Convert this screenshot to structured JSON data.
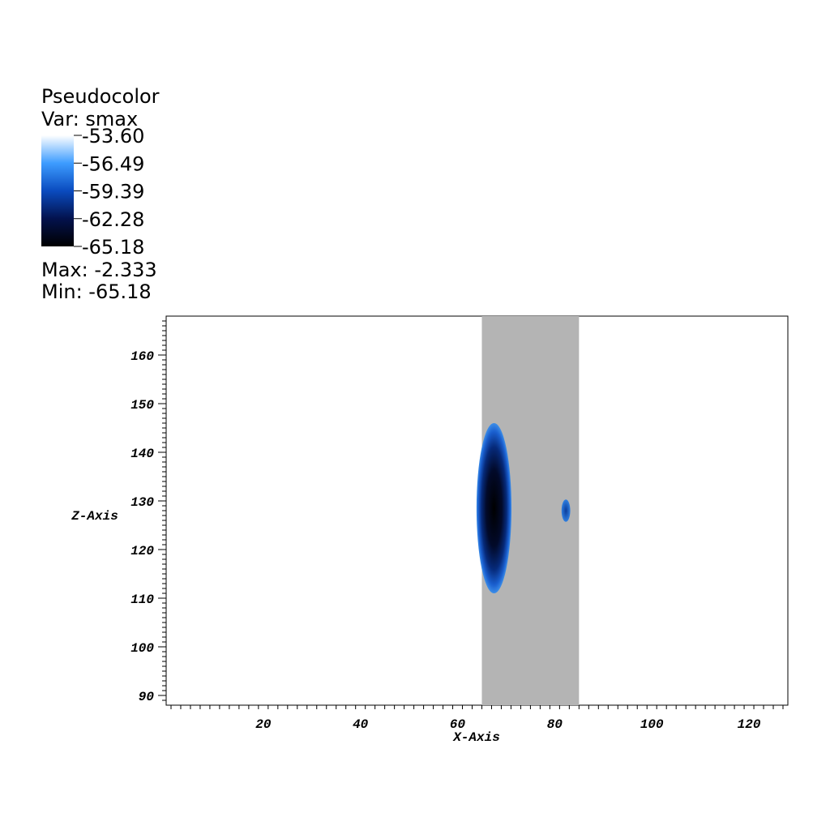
{
  "legend": {
    "plot_type": "Pseudocolor",
    "var_line": "Var: smax",
    "max_line": "Max: -2.333",
    "min_line": "Min: -65.18",
    "colorbar_labels": [
      "-53.60",
      "-56.49",
      "-59.39",
      "-62.28",
      "-65.18"
    ],
    "colorbar_colors": [
      "#ffffff",
      "#3d9cff",
      "#0a4bbf",
      "#03124d",
      "#000000"
    ]
  },
  "chart_data": {
    "type": "heatmap",
    "title": "",
    "xlabel": "X-Axis",
    "ylabel": "Z-Axis",
    "xlim": [
      0,
      128
    ],
    "ylim": [
      88,
      168
    ],
    "x_ticks": [
      20,
      40,
      60,
      80,
      100,
      120
    ],
    "y_ticks": [
      90,
      100,
      110,
      120,
      130,
      140,
      150,
      160
    ],
    "variable": "smax",
    "range": {
      "min": -65.18,
      "max": -2.333
    },
    "colorbar_range": [
      -65.18,
      -53.6
    ],
    "background_band": {
      "x": [
        65,
        85
      ],
      "color": "#b4b4b4"
    },
    "features": [
      {
        "name": "main-blob",
        "center": [
          67.5,
          128.5
        ],
        "half_width_x": 3.6,
        "half_height_z": 17.5,
        "value_min": -65.18
      },
      {
        "name": "small-blob",
        "center": [
          82.3,
          128
        ],
        "half_width_x": 0.9,
        "half_height_z": 2.3,
        "value_min": -58
      }
    ]
  }
}
